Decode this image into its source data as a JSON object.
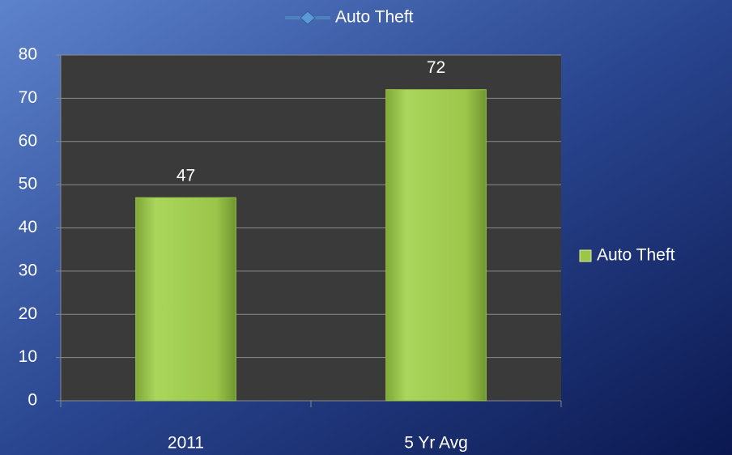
{
  "chart_data": {
    "type": "bar",
    "title": "Auto Theft",
    "categories": [
      "2011",
      "5 Yr Avg"
    ],
    "series": [
      {
        "name": "Auto Theft",
        "color": "#9cc64a",
        "values": [
          47,
          72
        ]
      }
    ],
    "ylim": [
      0,
      80
    ],
    "yticks": [
      0,
      10,
      20,
      30,
      40,
      50,
      60,
      70,
      80
    ],
    "grid": true,
    "legend": "right"
  }
}
